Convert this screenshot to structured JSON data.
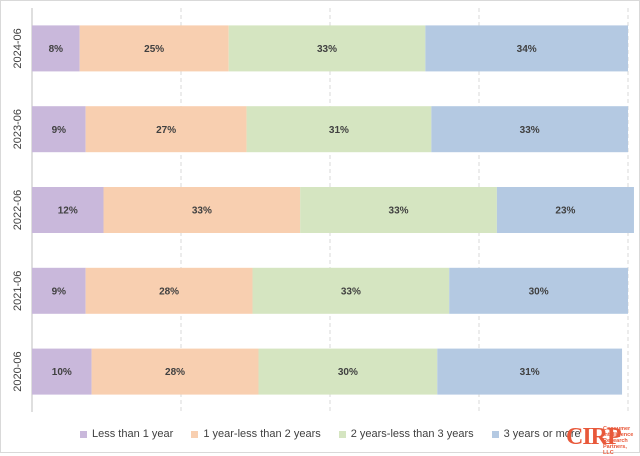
{
  "chart_data": {
    "type": "bar",
    "orientation": "horizontal",
    "stacked": true,
    "percent": true,
    "categories": [
      "2024-06",
      "2023-06",
      "2022-06",
      "2021-06",
      "2020-06"
    ],
    "series": [
      {
        "name": "Less than 1 year",
        "values": [
          8,
          9,
          12,
          9,
          10
        ],
        "color": "#c9b8db"
      },
      {
        "name": "1 year-less than 2 years",
        "values": [
          25,
          27,
          33,
          28,
          28
        ],
        "color": "#f8cfb0"
      },
      {
        "name": "2 years-less than 3 years",
        "values": [
          33,
          31,
          33,
          33,
          30
        ],
        "color": "#d5e5c1"
      },
      {
        "name": "3 years or more",
        "values": [
          34,
          33,
          23,
          30,
          31
        ],
        "color": "#b4c9e2"
      }
    ],
    "xlim": [
      0,
      100
    ],
    "grid": "vertical dashed",
    "legend": "bottom"
  },
  "logo": {
    "mark": "CIRP",
    "text": "Consumer Intelligence Research Partners, LLC",
    "color": "#e8583a"
  }
}
